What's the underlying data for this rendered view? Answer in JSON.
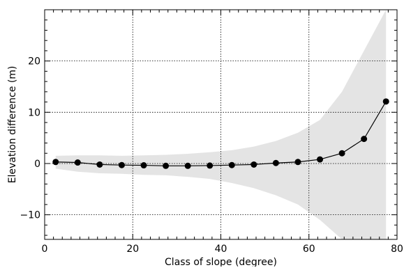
{
  "chart_data": {
    "type": "line",
    "title": "",
    "xlabel": "Class of slope (degree)",
    "ylabel": "Elevation difference (m)",
    "xlim": [
      0,
      80
    ],
    "ylim": [
      -14.8,
      30
    ],
    "x_major_ticks": [
      0,
      20,
      40,
      60,
      80
    ],
    "x_tick_labels": [
      "0",
      "20",
      "40",
      "60",
      "80"
    ],
    "y_major_ticks": [
      -10,
      0,
      10,
      20
    ],
    "y_tick_labels": [
      "−10",
      "0",
      "10",
      "20"
    ],
    "x_minor_step": 2,
    "y_minor_step": 2,
    "grid": true,
    "series": [
      {
        "x": [
          2.5,
          7.5,
          12.5,
          17.5,
          22.5,
          27.5,
          32.5,
          37.5,
          42.5,
          47.5,
          52.5,
          57.5,
          62.5,
          67.5,
          72.5,
          77.5
        ],
        "y": [
          0.3,
          0.2,
          -0.2,
          -0.3,
          -0.35,
          -0.45,
          -0.45,
          -0.4,
          -0.3,
          -0.2,
          0.1,
          0.3,
          0.8,
          2.0,
          4.8,
          12.1
        ],
        "color": "#000000"
      }
    ],
    "band": {
      "color": "#e4e4e4",
      "x": [
        2.5,
        7.5,
        12.5,
        17.5,
        22.5,
        27.5,
        32.5,
        37.5,
        42.5,
        47.5,
        52.5,
        57.5,
        62.5,
        67.5,
        72.5,
        77.5
      ],
      "upper": [
        1.5,
        1.6,
        1.6,
        1.5,
        1.6,
        1.7,
        1.9,
        2.2,
        2.6,
        3.3,
        4.4,
        6.0,
        8.5,
        14.0,
        22.0,
        30.0
      ],
      "lower": [
        -1.0,
        -1.6,
        -1.9,
        -2.0,
        -2.2,
        -2.3,
        -2.6,
        -3.0,
        -3.8,
        -4.8,
        -6.2,
        -8.0,
        -11.0,
        -14.8,
        -14.8,
        -14.8
      ]
    }
  }
}
